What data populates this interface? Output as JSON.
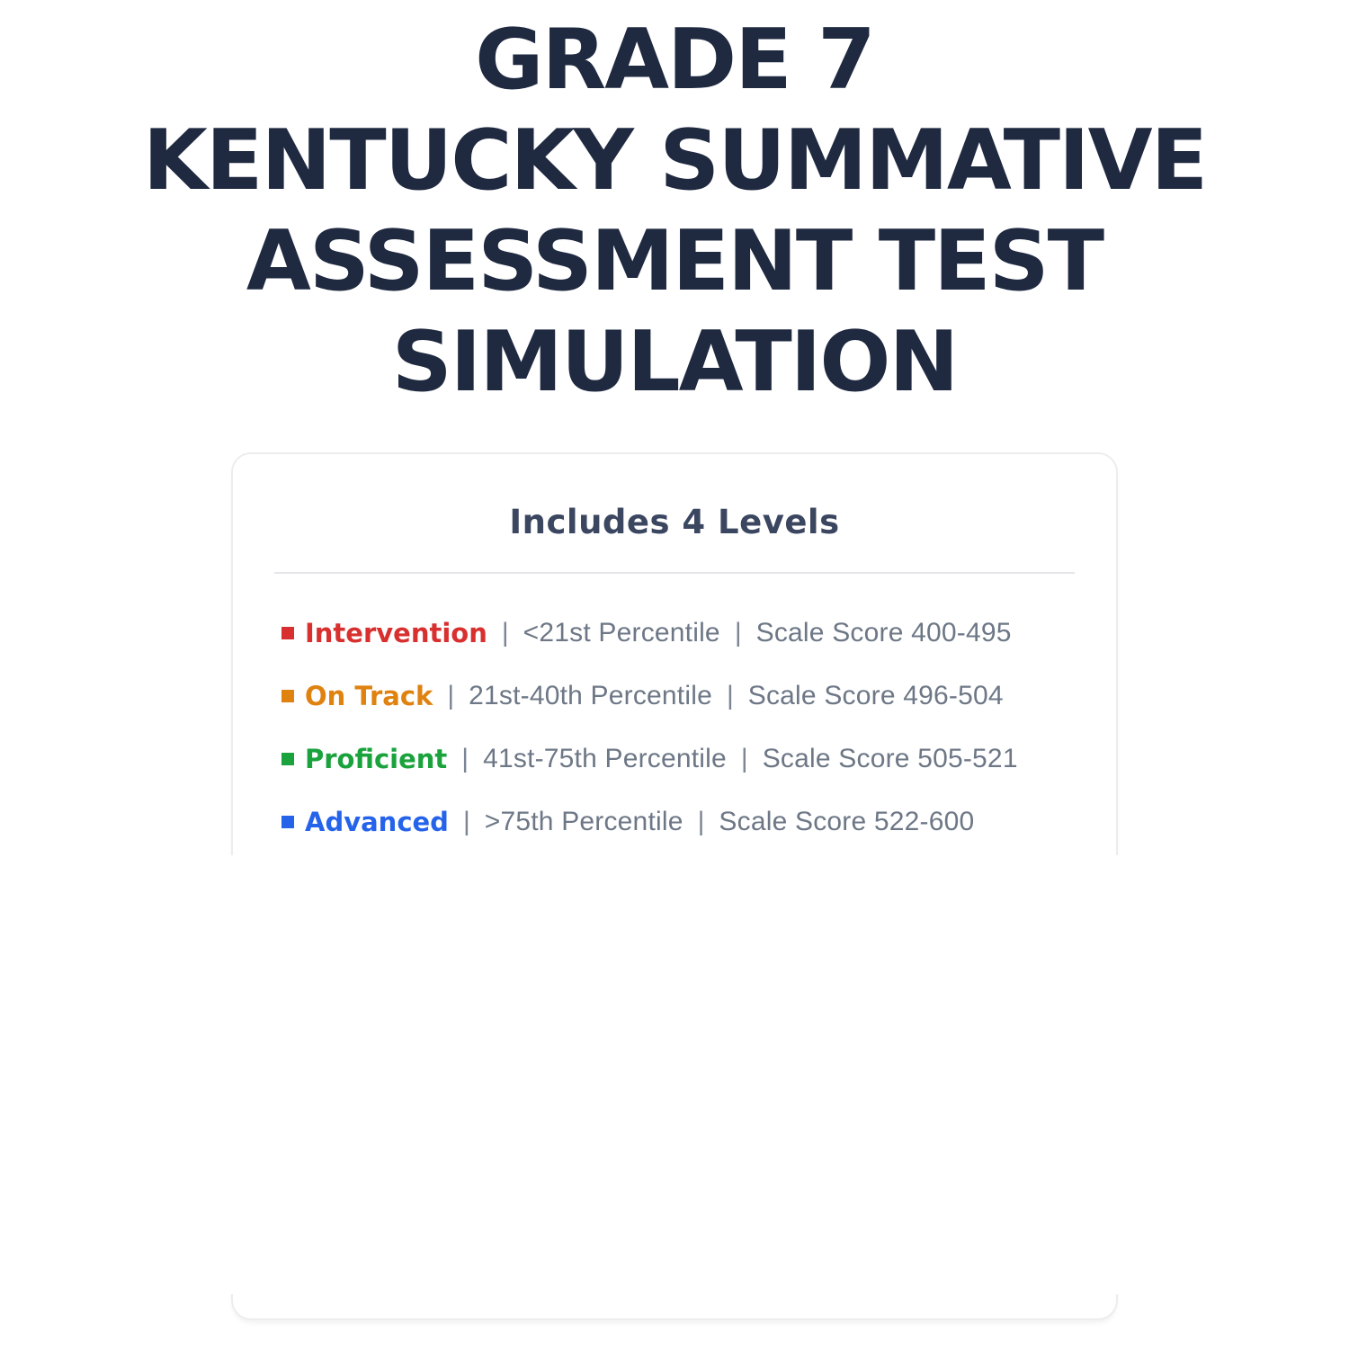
{
  "page": {
    "title": "GRADE 7\nKENTUCKY SUMMATIVE\nASSESSMENT TEST\nSIMULATION",
    "title_color": "#1f2940",
    "background_color": "#ffffff"
  },
  "card": {
    "heading": "Includes 4 Levels",
    "separator": "|",
    "border_color": "#ededed",
    "heading_color": "#3b4660",
    "detail_text_color": "#6d7786",
    "levels": [
      {
        "name": "Intervention",
        "color": "#d8302f",
        "percentile": "<21st Percentile",
        "scale_score": "Scale Score 400-495"
      },
      {
        "name": "On Track",
        "color": "#df820f",
        "percentile": "21st-40th Percentile",
        "scale_score": "Scale Score 496-504"
      },
      {
        "name": "Proficient",
        "color": "#1aa23c",
        "percentile": "41st-75th Percentile",
        "scale_score": "Scale Score 505-521"
      },
      {
        "name": "Advanced",
        "color": "#2563eb",
        "percentile": ">75th Percentile",
        "scale_score": "Scale Score 522-600"
      }
    ]
  }
}
